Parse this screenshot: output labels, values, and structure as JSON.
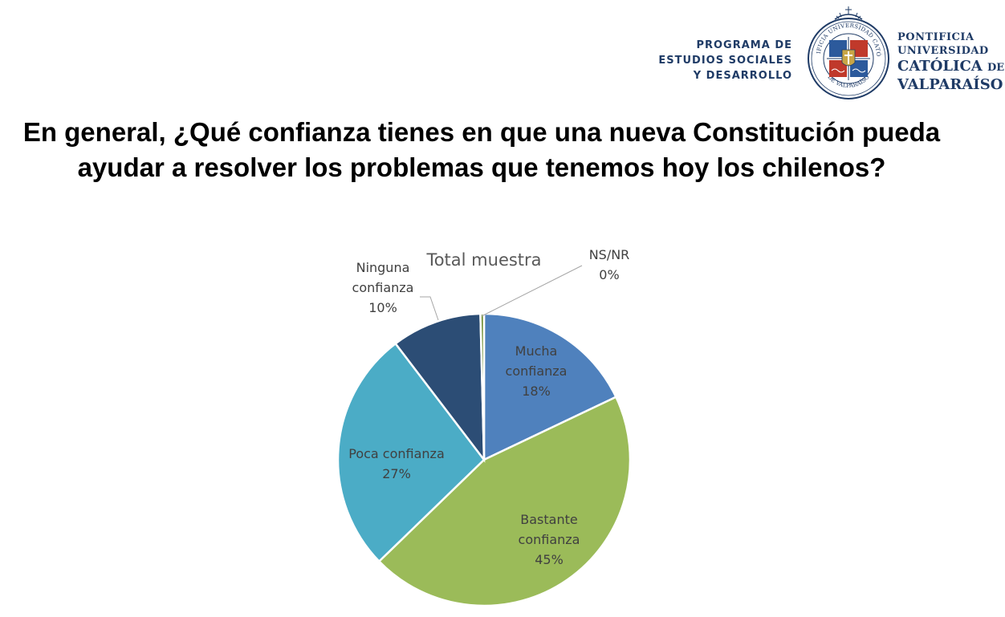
{
  "header": {
    "program_lines": [
      "PROGRAMA DE",
      "ESTUDIOS SOCIALES",
      "Y DESARROLLO"
    ],
    "university_lines": [
      "PONTIFICIA",
      "UNIVERSIDAD",
      "CATÓLICA",
      "DE",
      "VALPARAÍSO"
    ],
    "seal_text": "PONTIFICIA UNIVERSIDAD CATÓLICA DE VALPARAÍSO",
    "brand_color": "#1f3b66"
  },
  "question": "En general, ¿Qué confianza tienes en que una nueva Constitución pueda ayudar a resolver los problemas que tenemos hoy los chilenos?",
  "chart_data": {
    "type": "pie",
    "title": "Total muestra",
    "start_angle_deg": 0,
    "direction": "clockwise",
    "slices": [
      {
        "label_lines": [
          "Mucha",
          "confianza"
        ],
        "label": "Mucha confianza",
        "value": 18,
        "display": "18%",
        "color": "#4f81bd"
      },
      {
        "label_lines": [
          "Bastante",
          "confianza"
        ],
        "label": "Bastante confianza",
        "value": 45,
        "display": "45%",
        "color": "#9bbb59"
      },
      {
        "label_lines": [
          "Poca confianza"
        ],
        "label": "Poca confianza",
        "value": 27,
        "display": "27%",
        "color": "#4bacc6"
      },
      {
        "label_lines": [
          "Ninguna",
          "confianza"
        ],
        "label": "Ninguna confianza",
        "value": 10,
        "display": "10%",
        "color": "#2c4d75"
      },
      {
        "label_lines": [
          "NS/NR"
        ],
        "label": "NS/NR",
        "value": 0.4,
        "display": "0%",
        "color": "#77933c"
      }
    ]
  }
}
